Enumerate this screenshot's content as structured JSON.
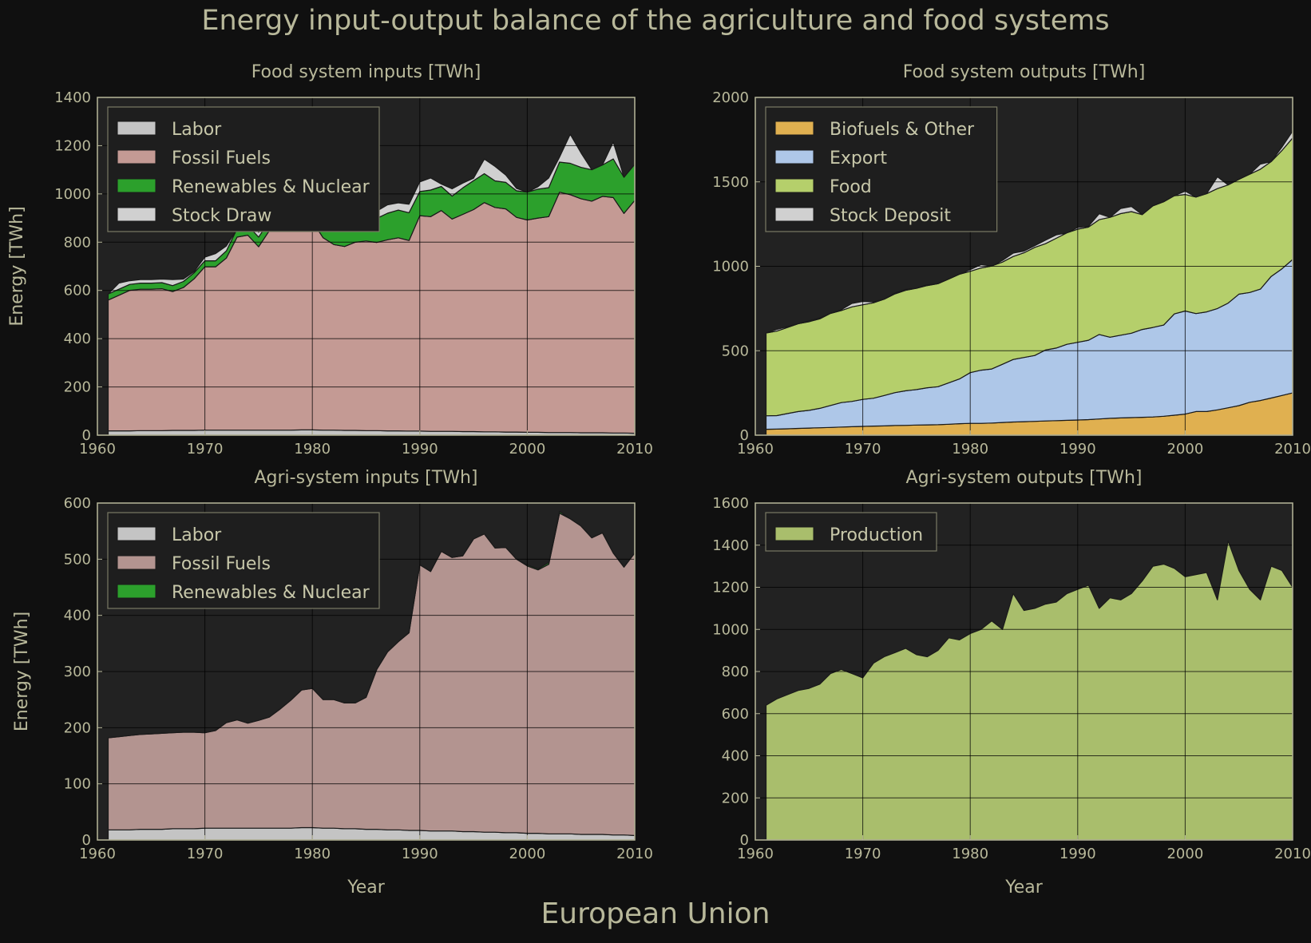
{
  "title": "Energy input-output balance of the agriculture and food systems",
  "footer": "European Union",
  "colors": {
    "labor": "#c4c4c4",
    "fossil": "#c49a94",
    "fossil_agri": "#b39490",
    "renewables": "#2ca02c",
    "stock": "#d0d0d0",
    "biofuels": "#e0b050",
    "export": "#aec7e8",
    "food": "#b5cf6b",
    "production": "#a9be6c",
    "plot_bg": "#222222"
  },
  "chart_data": [
    {
      "id": "food-inputs",
      "type": "area",
      "stacked": true,
      "title": "Food system inputs [TWh]",
      "xlabel": "",
      "ylabel": "Energy [TWh]",
      "xlim": [
        1960,
        2010
      ],
      "ylim": [
        0,
        1400
      ],
      "xticks": [
        1960,
        1970,
        1980,
        1990,
        2000,
        2010
      ],
      "yticks": [
        0,
        200,
        400,
        600,
        800,
        1000,
        1200,
        1400
      ],
      "legend": "top-left",
      "grid": true,
      "x": [
        1961,
        1962,
        1963,
        1964,
        1965,
        1966,
        1967,
        1968,
        1969,
        1970,
        1971,
        1972,
        1973,
        1974,
        1975,
        1976,
        1977,
        1978,
        1979,
        1980,
        1981,
        1982,
        1983,
        1984,
        1985,
        1986,
        1987,
        1988,
        1989,
        1990,
        1991,
        1992,
        1993,
        1994,
        1995,
        1996,
        1997,
        1998,
        1999,
        2000,
        2001,
        2002,
        2003,
        2004,
        2005,
        2006,
        2007,
        2008,
        2009,
        2010
      ],
      "series": [
        {
          "name": "Labor",
          "color": "labor",
          "values": [
            18,
            18,
            18,
            19,
            19,
            19,
            20,
            20,
            20,
            21,
            21,
            21,
            21,
            21,
            21,
            21,
            21,
            21,
            22,
            22,
            21,
            21,
            20,
            20,
            19,
            19,
            18,
            18,
            17,
            17,
            16,
            16,
            16,
            15,
            15,
            14,
            14,
            13,
            13,
            12,
            12,
            11,
            11,
            11,
            10,
            10,
            10,
            9,
            9,
            8
          ]
        },
        {
          "name": "Fossil Fuels",
          "color": "fossil",
          "values": [
            542,
            562,
            582,
            586,
            586,
            588,
            575,
            592,
            628,
            677,
            677,
            713,
            800,
            808,
            760,
            827,
            860,
            860,
            852,
            865,
            797,
            769,
            762,
            780,
            786,
            780,
            792,
            800,
            790,
            893,
            890,
            915,
            880,
            900,
            920,
            950,
            930,
            925,
            890,
            880,
            888,
            895,
            996,
            986,
            970,
            960,
            980,
            976,
            910,
            965
          ]
        },
        {
          "name": "Renewables & Nuclear",
          "color": "renewables",
          "values": [
            25,
            25,
            25,
            25,
            25,
            25,
            25,
            25,
            25,
            25,
            25,
            30,
            35,
            40,
            40,
            40,
            40,
            40,
            65,
            55,
            60,
            65,
            70,
            70,
            80,
            100,
            110,
            115,
            115,
            100,
            110,
            100,
            95,
            110,
            120,
            120,
            110,
            110,
            110,
            115,
            120,
            120,
            125,
            130,
            130,
            130,
            130,
            160,
            150,
            150
          ]
        },
        {
          "name": "Stock Draw",
          "color": "stock",
          "values": [
            0,
            25,
            15,
            15,
            15,
            15,
            25,
            10,
            5,
            15,
            30,
            20,
            0,
            30,
            20,
            30,
            35,
            70,
            45,
            35,
            30,
            30,
            35,
            60,
            35,
            30,
            35,
            30,
            35,
            40,
            50,
            10,
            30,
            20,
            10,
            60,
            60,
            30,
            10,
            0,
            10,
            40,
            20,
            120,
            60,
            0,
            0,
            70,
            0,
            0
          ]
        }
      ]
    },
    {
      "id": "food-outputs",
      "type": "area",
      "stacked": true,
      "title": "Food system outputs [TWh]",
      "xlabel": "",
      "ylabel": "",
      "xlim": [
        1960,
        2010
      ],
      "ylim": [
        0,
        2000
      ],
      "xticks": [
        1960,
        1970,
        1980,
        1990,
        2000,
        2010
      ],
      "yticks": [
        0,
        500,
        1000,
        1500,
        2000
      ],
      "legend": "top-left",
      "grid": true,
      "x": [
        1961,
        1962,
        1963,
        1964,
        1965,
        1966,
        1967,
        1968,
        1969,
        1970,
        1971,
        1972,
        1973,
        1974,
        1975,
        1976,
        1977,
        1978,
        1979,
        1980,
        1981,
        1982,
        1983,
        1984,
        1985,
        1986,
        1987,
        1988,
        1989,
        1990,
        1991,
        1992,
        1993,
        1994,
        1995,
        1996,
        1997,
        1998,
        1999,
        2000,
        2001,
        2002,
        2003,
        2004,
        2005,
        2006,
        2007,
        2008,
        2009,
        2010
      ],
      "series": [
        {
          "name": "Biofuels & Other",
          "color": "biofuels",
          "values": [
            35,
            36,
            38,
            40,
            42,
            44,
            46,
            48,
            50,
            52,
            54,
            55,
            57,
            58,
            60,
            61,
            62,
            65,
            68,
            70,
            70,
            72,
            75,
            78,
            80,
            82,
            84,
            86,
            88,
            90,
            92,
            96,
            100,
            102,
            104,
            106,
            108,
            112,
            118,
            125,
            140,
            140,
            150,
            162,
            175,
            195,
            205,
            220,
            235,
            250
          ]
        },
        {
          "name": "Export",
          "color": "export",
          "values": [
            80,
            80,
            90,
            100,
            105,
            115,
            130,
            145,
            150,
            160,
            165,
            180,
            195,
            205,
            210,
            220,
            225,
            245,
            265,
            300,
            315,
            320,
            345,
            370,
            380,
            390,
            420,
            430,
            450,
            460,
            470,
            500,
            480,
            490,
            500,
            520,
            530,
            540,
            600,
            610,
            580,
            590,
            600,
            620,
            660,
            650,
            660,
            720,
            750,
            790
          ]
        },
        {
          "name": "Food",
          "color": "food",
          "values": [
            490,
            500,
            510,
            520,
            525,
            530,
            545,
            545,
            560,
            560,
            565,
            570,
            585,
            595,
            600,
            605,
            610,
            615,
            620,
            600,
            605,
            610,
            605,
            610,
            620,
            640,
            630,
            650,
            660,
            670,
            670,
            680,
            710,
            720,
            720,
            680,
            720,
            730,
            700,
            690,
            690,
            700,
            710,
            700,
            680,
            700,
            710,
            680,
            700,
            720
          ]
        },
        {
          "name": "Stock Deposit",
          "color": "stock",
          "values": [
            0,
            10,
            5,
            0,
            5,
            5,
            0,
            5,
            20,
            20,
            5,
            0,
            5,
            5,
            0,
            5,
            0,
            0,
            0,
            10,
            20,
            0,
            10,
            20,
            10,
            10,
            20,
            20,
            0,
            10,
            5,
            35,
            0,
            30,
            30,
            0,
            0,
            0,
            0,
            20,
            0,
            0,
            70,
            0,
            0,
            0,
            30,
            0,
            20,
            40
          ]
        }
      ]
    },
    {
      "id": "agri-inputs",
      "type": "area",
      "stacked": true,
      "title": "Agri-system inputs [TWh]",
      "xlabel": "Year",
      "ylabel": "Energy [TWh]",
      "xlim": [
        1960,
        2010
      ],
      "ylim": [
        0,
        600
      ],
      "xticks": [
        1960,
        1970,
        1980,
        1990,
        2000,
        2010
      ],
      "yticks": [
        0,
        100,
        200,
        300,
        400,
        500,
        600
      ],
      "legend": "top-left",
      "grid": true,
      "x": [
        1961,
        1962,
        1963,
        1964,
        1965,
        1966,
        1967,
        1968,
        1969,
        1970,
        1971,
        1972,
        1973,
        1974,
        1975,
        1976,
        1977,
        1978,
        1979,
        1980,
        1981,
        1982,
        1983,
        1984,
        1985,
        1986,
        1987,
        1988,
        1989,
        1990,
        1991,
        1992,
        1993,
        1994,
        1995,
        1996,
        1997,
        1998,
        1999,
        2000,
        2001,
        2002,
        2003,
        2004,
        2005,
        2006,
        2007,
        2008,
        2009,
        2010
      ],
      "series": [
        {
          "name": "Labor",
          "color": "labor",
          "values": [
            18,
            18,
            18,
            19,
            19,
            19,
            20,
            20,
            20,
            21,
            21,
            21,
            21,
            21,
            21,
            21,
            21,
            21,
            22,
            22,
            21,
            21,
            20,
            20,
            19,
            19,
            18,
            18,
            17,
            17,
            16,
            16,
            16,
            15,
            15,
            14,
            14,
            13,
            13,
            12,
            12,
            11,
            11,
            11,
            10,
            10,
            10,
            9,
            9,
            8
          ]
        },
        {
          "name": "Fossil Fuels",
          "color": "fossil_agri",
          "values": [
            164,
            166,
            168,
            169,
            170,
            171,
            171,
            172,
            172,
            170,
            174,
            188,
            193,
            187,
            192,
            198,
            212,
            228,
            245,
            248,
            229,
            229,
            224,
            224,
            235,
            285,
            317,
            335,
            352,
            473,
            462,
            498,
            487,
            491,
            521,
            531,
            506,
            508,
            487,
            476,
            469,
            480,
            571,
            561,
            549,
            528,
            537,
            502,
            477,
            503
          ]
        },
        {
          "name": "Renewables & Nuclear",
          "color": "renewables",
          "values": [
            0,
            0,
            0,
            0,
            0,
            0,
            0,
            0,
            0,
            0,
            0,
            0,
            0,
            0,
            0,
            0,
            0,
            0,
            0,
            0,
            0,
            0,
            0,
            0,
            0,
            0,
            0,
            0,
            0,
            0,
            0,
            0,
            0,
            0,
            0,
            0,
            0,
            0,
            0,
            2,
            2,
            3,
            3,
            0,
            0,
            0,
            0,
            0,
            0,
            0
          ]
        }
      ]
    },
    {
      "id": "agri-outputs",
      "type": "area",
      "stacked": true,
      "title": "Agri-system outputs [TWh]",
      "xlabel": "Year",
      "ylabel": "",
      "xlim": [
        1960,
        2010
      ],
      "ylim": [
        0,
        1600
      ],
      "xticks": [
        1960,
        1970,
        1980,
        1990,
        2000,
        2010
      ],
      "yticks": [
        0,
        200,
        400,
        600,
        800,
        1000,
        1200,
        1400,
        1600
      ],
      "legend": "top-left",
      "grid": true,
      "x": [
        1961,
        1962,
        1963,
        1964,
        1965,
        1966,
        1967,
        1968,
        1969,
        1970,
        1971,
        1972,
        1973,
        1974,
        1975,
        1976,
        1977,
        1978,
        1979,
        1980,
        1981,
        1982,
        1983,
        1984,
        1985,
        1986,
        1987,
        1988,
        1989,
        1990,
        1991,
        1992,
        1993,
        1994,
        1995,
        1996,
        1997,
        1998,
        1999,
        2000,
        2001,
        2002,
        2003,
        2004,
        2005,
        2006,
        2007,
        2008,
        2009,
        2010
      ],
      "series": [
        {
          "name": "Production",
          "color": "production",
          "values": [
            640,
            670,
            690,
            710,
            720,
            740,
            790,
            810,
            790,
            770,
            840,
            870,
            890,
            910,
            880,
            870,
            900,
            960,
            950,
            980,
            1000,
            1040,
            1000,
            1170,
            1090,
            1100,
            1120,
            1130,
            1170,
            1190,
            1210,
            1100,
            1150,
            1140,
            1170,
            1230,
            1300,
            1310,
            1290,
            1250,
            1260,
            1270,
            1140,
            1420,
            1280,
            1190,
            1140,
            1300,
            1280,
            1200
          ]
        }
      ]
    }
  ]
}
